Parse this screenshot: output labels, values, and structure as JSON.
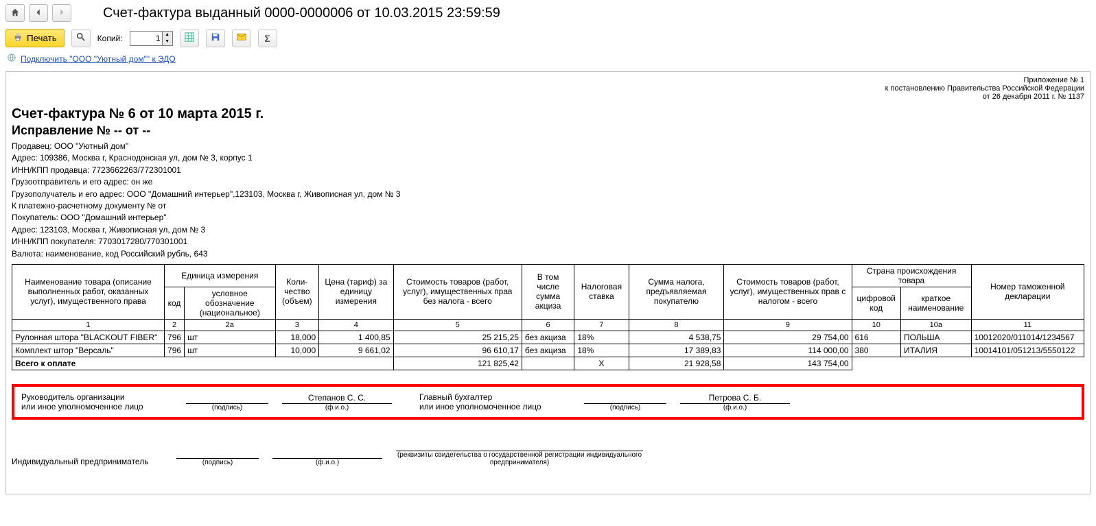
{
  "window": {
    "title": "Счет-фактура выданный 0000-0000006 от 10.03.2015 23:59:59"
  },
  "toolbar": {
    "print_label": "Печать",
    "copies_label": "Копий:",
    "copies_value": "1"
  },
  "edo": {
    "link_text": "Подключить \"ООО \"Уютный дом\"\" к ЭДО"
  },
  "legal": {
    "line1": "Приложение № 1",
    "line2": "к постановлению Правительства Российской Федерации",
    "line3": "от 26 декабря 2011 г. № 1137"
  },
  "header": {
    "title": "Счет-фактура № 6 от 10 марта 2015 г.",
    "correction": "Исправление № -- от --"
  },
  "info": {
    "seller": "Продавец: ООО \"Уютный дом\"",
    "seller_addr": "Адрес: 109386, Москва г, Краснодонская ул, дом № 3, корпус 1",
    "seller_inn": "ИНН/КПП продавца: 7723662263/772301001",
    "consignor": "Грузоотправитель и его адрес: он же",
    "consignee": "Грузополучатель и его адрес: ООО \"Домашний интерьер\",123103, Москва г, Живописная ул, дом № 3",
    "paydoc": "К платежно-расчетному документу №    от",
    "buyer": "Покупатель: ООО \"Домашний интерьер\"",
    "buyer_addr": "Адрес: 123103, Москва г, Живописная ул, дом № 3",
    "buyer_inn": "ИНН/КПП покупателя: 7703017280/770301001",
    "currency": "Валюта: наименование, код Российский рубль, 643"
  },
  "table": {
    "headers": {
      "name": "Наименование товара (описание выполненных работ, оказанных услуг), имущественного права",
      "unit": "Единица измерения",
      "unit_code": "код",
      "unit_name": "условное обозначение (национальное)",
      "qty": "Коли-\nчество (объем)",
      "price": "Цена (тариф) за единицу измерения",
      "cost_notax": "Стоимость товаров (работ, услуг), имущественных прав без налога - всего",
      "excise": "В том числе сумма акциза",
      "taxrate": "Налоговая ставка",
      "taxsum": "Сумма налога, предъявляемая покупателю",
      "cost_withtax": "Стоимость товаров (работ, услуг), имущественных прав с налогом - всего",
      "country": "Страна происхождения товара",
      "country_code": "цифровой код",
      "country_name": "краткое наименование",
      "decl": "Номер таможенной декларации"
    },
    "colnums": [
      "1",
      "2",
      "2а",
      "3",
      "4",
      "5",
      "6",
      "7",
      "8",
      "9",
      "10",
      "10а",
      "11"
    ],
    "rows": [
      {
        "name": "Рулонная штора \"BLACKOUT FIBER\"",
        "ucode": "796",
        "uname": "шт",
        "qty": "18,000",
        "price": "1 400,85",
        "cost_notax": "25 215,25",
        "excise": "без акциза",
        "rate": "18%",
        "taxsum": "4 538,75",
        "cost_withtax": "29 754,00",
        "ccode": "616",
        "cname": "ПОЛЬША",
        "decl": "10012020/011014/1234567"
      },
      {
        "name": "Комплект штор \"Версаль\"",
        "ucode": "796",
        "uname": "шт",
        "qty": "10,000",
        "price": "9 661,02",
        "cost_notax": "96 610,17",
        "excise": "без акциза",
        "rate": "18%",
        "taxsum": "17 389,83",
        "cost_withtax": "114 000,00",
        "ccode": "380",
        "cname": "ИТАЛИЯ",
        "decl": "10014101/051213/5550122"
      }
    ],
    "total": {
      "label": "Всего к оплате",
      "cost_notax": "121 825,42",
      "x": "Х",
      "taxsum": "21 928,58",
      "cost_withtax": "143 754,00"
    }
  },
  "sig": {
    "head_label": "Руководитель организации\nили иное уполномоченное лицо",
    "head_name": "Степанов С. С.",
    "acc_label": "Главный бухгалтер\nили иное уполномоченное лицо",
    "acc_name": "Петрова С. Б.",
    "podpis": "(подпись)",
    "fio": "(ф.и.о.)",
    "ip_label": "Индивидуальный предприниматель",
    "ip_note": "(реквизиты свидетельства о государственной регистрации индивидуального предпринимателя)"
  }
}
